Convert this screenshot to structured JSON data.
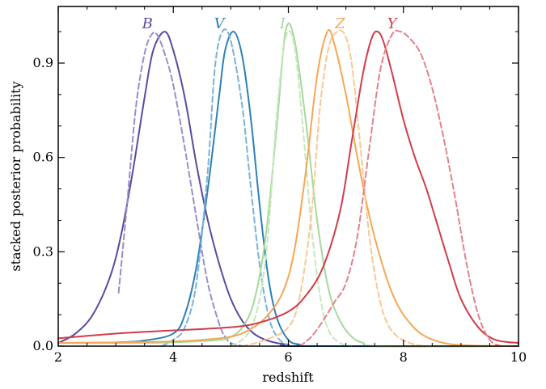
{
  "chart_data": {
    "type": "line",
    "xlabel": "redshift",
    "ylabel": "stacked posterior probability",
    "xlim": [
      2,
      10
    ],
    "ylim": [
      0,
      1.08
    ],
    "xticks": [
      "2",
      "4",
      "6",
      "8",
      "10"
    ],
    "yticks": [
      "0.0",
      "0.3",
      "0.6",
      "0.9"
    ],
    "grid": false,
    "legend": "none",
    "series": [
      {
        "name": "B",
        "color": "#5a4aa0",
        "dash": false,
        "x": [
          2.0,
          2.3,
          2.6,
          2.9,
          3.1,
          3.3,
          3.5,
          3.65,
          3.85,
          4.0,
          4.2,
          4.4,
          4.6,
          4.8,
          5.0,
          5.2,
          5.4,
          5.6,
          5.8,
          6.0,
          6.2,
          10.0
        ],
        "y": [
          0.01,
          0.04,
          0.1,
          0.22,
          0.36,
          0.56,
          0.79,
          0.94,
          1.0,
          0.94,
          0.79,
          0.58,
          0.4,
          0.26,
          0.15,
          0.08,
          0.04,
          0.02,
          0.01,
          0.005,
          0.0,
          0.0
        ]
      },
      {
        "name": "B",
        "color": "#9a8ec8",
        "dash": true,
        "x": [
          3.05,
          3.2,
          3.35,
          3.5,
          3.62,
          3.72,
          3.85,
          4.0,
          4.2,
          4.4,
          4.6,
          4.8,
          4.9,
          5.0,
          5.2
        ],
        "y": [
          0.17,
          0.46,
          0.76,
          0.93,
          0.99,
          0.99,
          0.93,
          0.83,
          0.63,
          0.41,
          0.2,
          0.07,
          0.03,
          0.01,
          0.0
        ]
      },
      {
        "name": "V",
        "color": "#2e7fb8",
        "dash": false,
        "x": [
          2.0,
          3.0,
          3.5,
          4.0,
          4.2,
          4.4,
          4.6,
          4.8,
          4.9,
          5.05,
          5.2,
          5.35,
          5.5,
          5.65,
          5.8,
          6.0,
          6.2,
          6.5,
          10.0
        ],
        "y": [
          0.01,
          0.012,
          0.018,
          0.04,
          0.1,
          0.25,
          0.5,
          0.8,
          0.94,
          1.0,
          0.92,
          0.72,
          0.45,
          0.22,
          0.09,
          0.02,
          0.005,
          0.0,
          0.0
        ]
      },
      {
        "name": "V",
        "color": "#7bb2d8",
        "dash": true,
        "x": [
          3.8,
          4.0,
          4.2,
          4.4,
          4.6,
          4.72,
          4.85,
          5.0,
          5.2,
          5.35,
          5.5,
          5.65,
          5.8,
          6.0
        ],
        "y": [
          0.0,
          0.02,
          0.06,
          0.2,
          0.56,
          0.88,
          1.0,
          0.97,
          0.76,
          0.5,
          0.26,
          0.1,
          0.03,
          0.0
        ]
      },
      {
        "name": "I",
        "color": "#a6d99a",
        "dash": false,
        "x": [
          2.0,
          3.0,
          4.0,
          4.8,
          5.0,
          5.2,
          5.4,
          5.6,
          5.8,
          5.95,
          6.1,
          6.3,
          6.5,
          6.7,
          6.9,
          7.1,
          7.3,
          7.6,
          10.0
        ],
        "y": [
          0.01,
          0.01,
          0.012,
          0.02,
          0.03,
          0.06,
          0.14,
          0.34,
          0.7,
          1.0,
          0.98,
          0.72,
          0.4,
          0.18,
          0.08,
          0.03,
          0.01,
          0.0,
          0.0
        ]
      },
      {
        "name": "I",
        "color": "#c7e8bc",
        "dash": true,
        "x": [
          5.0,
          5.3,
          5.5,
          5.65,
          5.8,
          5.95,
          6.1,
          6.25,
          6.4,
          6.55,
          6.7,
          6.9,
          7.1
        ],
        "y": [
          0.0,
          0.04,
          0.15,
          0.36,
          0.74,
          0.98,
          0.96,
          0.7,
          0.38,
          0.16,
          0.05,
          0.01,
          0.0
        ]
      },
      {
        "name": "Z",
        "color": "#f5a755",
        "dash": false,
        "x": [
          2.0,
          3.0,
          4.0,
          4.5,
          5.0,
          5.3,
          5.6,
          5.9,
          6.1,
          6.3,
          6.5,
          6.68,
          6.8,
          7.0,
          7.2,
          7.4,
          7.6,
          7.8,
          8.0,
          8.3,
          8.7,
          9.2,
          10.0
        ],
        "y": [
          0.01,
          0.012,
          0.015,
          0.02,
          0.03,
          0.05,
          0.09,
          0.17,
          0.3,
          0.55,
          0.86,
          1.0,
          0.96,
          0.8,
          0.6,
          0.42,
          0.28,
          0.17,
          0.1,
          0.04,
          0.01,
          0.002,
          0.0
        ]
      },
      {
        "name": "Z",
        "color": "#fac793",
        "dash": true,
        "x": [
          5.2,
          5.6,
          6.0,
          6.2,
          6.4,
          6.55,
          6.7,
          6.85,
          6.98,
          7.1,
          7.25,
          7.4,
          7.55,
          7.7,
          7.9,
          8.2,
          8.5
        ],
        "y": [
          0.0,
          0.02,
          0.06,
          0.16,
          0.42,
          0.76,
          0.95,
          1.0,
          0.99,
          0.9,
          0.64,
          0.36,
          0.18,
          0.08,
          0.03,
          0.005,
          0.0
        ]
      },
      {
        "name": "Y",
        "color": "#d03c4a",
        "dash": false,
        "x": [
          2.0,
          3.0,
          4.0,
          5.0,
          5.5,
          6.0,
          6.3,
          6.6,
          6.9,
          7.1,
          7.3,
          7.45,
          7.55,
          7.65,
          7.8,
          8.0,
          8.2,
          8.4,
          8.6,
          8.8,
          9.0,
          9.3,
          9.6,
          10.0
        ],
        "y": [
          0.025,
          0.04,
          0.05,
          0.06,
          0.075,
          0.11,
          0.16,
          0.25,
          0.43,
          0.65,
          0.87,
          0.98,
          1.0,
          0.97,
          0.87,
          0.72,
          0.6,
          0.5,
          0.38,
          0.26,
          0.15,
          0.06,
          0.02,
          0.01
        ]
      },
      {
        "name": "Y",
        "color": "#e2828a",
        "dash": true,
        "x": [
          6.2,
          6.4,
          6.6,
          6.8,
          7.0,
          7.2,
          7.4,
          7.6,
          7.8,
          7.95,
          8.1,
          8.3,
          8.5,
          8.7,
          8.9,
          9.1,
          9.3,
          9.5,
          9.7
        ],
        "y": [
          0.0,
          0.03,
          0.08,
          0.14,
          0.2,
          0.35,
          0.62,
          0.88,
          0.99,
          1.0,
          0.98,
          0.93,
          0.82,
          0.66,
          0.47,
          0.26,
          0.1,
          0.02,
          0.0
        ]
      }
    ],
    "annotations": [
      {
        "text": "B",
        "x": 3.55,
        "color": "#5a4aa0"
      },
      {
        "text": "V",
        "x": 4.8,
        "color": "#2e7fb8"
      },
      {
        "text": "I",
        "x": 5.9,
        "color": "#a6d99a"
      },
      {
        "text": "Z",
        "x": 6.9,
        "color": "#f5a755"
      },
      {
        "text": "Y",
        "x": 7.8,
        "color": "#d03c4a"
      }
    ]
  }
}
